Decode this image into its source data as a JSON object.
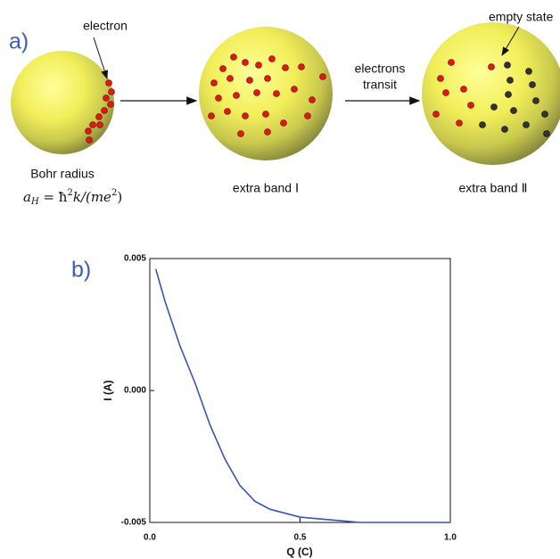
{
  "panel_a": {
    "label": "a)",
    "electron": "electron",
    "bohr": "Bohr radius",
    "formula": [
      "a",
      "H",
      " = ħ",
      "2",
      "k/(me",
      "2",
      ")"
    ],
    "band1": "extra band Ⅰ",
    "transit": [
      "electrons",
      "transit"
    ],
    "empty": "empty state",
    "band2": "extra band Ⅱ"
  },
  "chart_data": {
    "type": "line",
    "panel_label": "b)",
    "x_label": "Q (C)",
    "y_label": "I (A)",
    "xlim": [
      0,
      1
    ],
    "ylim": [
      -0.005,
      0.005
    ],
    "xticks": [
      {
        "value": 0,
        "label": "0.0"
      },
      0.5,
      {
        "value": 1,
        "label": "1.0"
      }
    ],
    "yticks": [
      -0.005,
      {
        "value": 0,
        "label": "0.000"
      },
      0.005
    ],
    "series": [
      {
        "color": "#3a55b0",
        "x": [
          0.02,
          0.05,
          0.1,
          0.15,
          0.2,
          0.25,
          0.3,
          0.35,
          0.4,
          0.5,
          0.6,
          0.7,
          0.8,
          0.9,
          1.0
        ],
        "values": [
          0.0046,
          0.0034,
          0.0017,
          0.0003,
          -0.0013,
          -0.0026,
          -0.0036,
          -0.0042,
          -0.0045,
          -0.0048,
          -0.0049,
          -0.005,
          -0.005,
          -0.005,
          -0.005
        ]
      }
    ]
  }
}
